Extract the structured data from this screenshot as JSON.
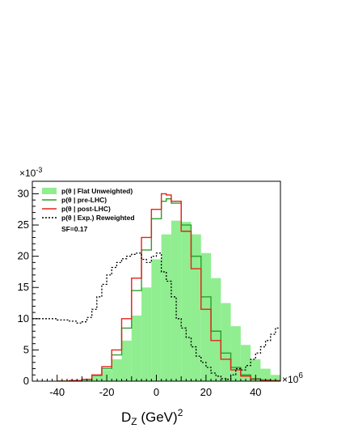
{
  "chart_data": {
    "type": "area",
    "xlabel_base": "D",
    "xlabel_sub": "Z",
    "xlabel_unit": " (GeV)",
    "xlabel_sup": "2",
    "x_multiplier": "×10",
    "x_multiplier_exp": "6",
    "y_multiplier": "×10",
    "y_multiplier_exp": "-3",
    "xlim": [
      -50,
      50
    ],
    "ylim": [
      0,
      32
    ],
    "x_ticks": [
      -40,
      -20,
      0,
      20,
      40
    ],
    "y_ticks": [
      0,
      5,
      10,
      15,
      20,
      25,
      30
    ],
    "legend_position": "top-left",
    "annotation": "SF=0.17",
    "series": [
      {
        "name": "p(θ | Flat Unweighted)",
        "style": "filled histogram",
        "color": "#90ee90",
        "x": [
          -40,
          -35,
          -30,
          -26,
          -22,
          -18,
          -14,
          -10,
          -6,
          -2,
          2,
          6,
          10,
          14,
          18,
          22,
          26,
          30,
          34,
          38,
          42,
          46,
          50
        ],
        "y": [
          0,
          0.1,
          0.3,
          0.8,
          1.8,
          3.5,
          6.5,
          10.5,
          15.0,
          19.5,
          23.5,
          25.7,
          25.5,
          23.5,
          20.5,
          16.5,
          12.5,
          8.8,
          5.8,
          3.5,
          2.0,
          1.0,
          0.5
        ]
      },
      {
        "name": "p(θ | pre-LHC)",
        "style": "line",
        "color": "#2ca02c",
        "x": [
          -40,
          -35,
          -30,
          -26,
          -22,
          -18,
          -14,
          -10,
          -6,
          -2,
          2,
          4,
          6,
          10,
          14,
          18,
          22,
          26,
          30,
          34,
          38,
          42,
          46,
          50
        ],
        "y": [
          0,
          0.1,
          0.3,
          0.9,
          2.0,
          4.2,
          8.5,
          14.5,
          21.0,
          26.0,
          28.8,
          29.2,
          28.5,
          25.0,
          20.0,
          13.5,
          8.0,
          4.5,
          2.2,
          1.0,
          0.4,
          0.2,
          0.1,
          0
        ]
      },
      {
        "name": "p(θ | post-LHC)",
        "style": "line",
        "color": "#e8211c",
        "x": [
          -40,
          -35,
          -30,
          -26,
          -22,
          -18,
          -14,
          -10,
          -6,
          -2,
          2,
          4,
          6,
          10,
          14,
          18,
          22,
          26,
          30,
          34,
          38,
          42,
          46,
          50
        ],
        "y": [
          0,
          0.1,
          0.3,
          1.0,
          2.3,
          5.0,
          10.0,
          16.5,
          23.0,
          27.5,
          30.0,
          29.8,
          28.8,
          24.0,
          18.0,
          11.5,
          6.5,
          3.5,
          1.8,
          0.8,
          0.3,
          0.1,
          0.05,
          0
        ]
      },
      {
        "name": "p(θ | Exp.) Reweighted",
        "style": "dashed line",
        "color": "#000000",
        "x": [
          -50,
          -45,
          -40,
          -35,
          -32,
          -30,
          -28,
          -26,
          -24,
          -22,
          -20,
          -18,
          -16,
          -14,
          -12,
          -10,
          -8,
          -6,
          -4,
          -2,
          0,
          2,
          4,
          6,
          8,
          10,
          12,
          14,
          16,
          18,
          20,
          22,
          24,
          26,
          28,
          30,
          32,
          34,
          36,
          38,
          40,
          42,
          44,
          46,
          48,
          50
        ],
        "y": [
          10,
          10,
          9.8,
          9.6,
          9.3,
          9.5,
          10.2,
          11.5,
          13.5,
          15.5,
          17.0,
          18.2,
          19.0,
          19.6,
          20.0,
          20.3,
          20.5,
          19.5,
          19.0,
          20.0,
          20.5,
          17.5,
          16.0,
          13.5,
          10.0,
          8.5,
          7.0,
          5.5,
          4.0,
          3.0,
          2.2,
          1.3,
          0.8,
          0.4,
          0.3,
          1.0,
          2.0,
          1.8,
          2.5,
          3.5,
          4.5,
          5.5,
          6.5,
          7.5,
          8.5,
          9.2
        ]
      }
    ]
  }
}
